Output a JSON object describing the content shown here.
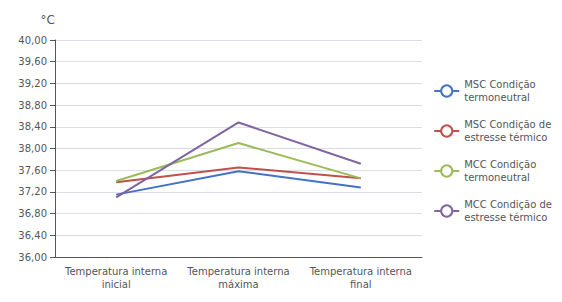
{
  "chart_data": {
    "type": "line",
    "ylabel": "°C",
    "categories": [
      "Temperatura interna\ninicial",
      "Temperatura interna\nmáxima",
      "Temperatura interna\nfinal"
    ],
    "series": [
      {
        "name": "MSC Condição\ntermoneutral",
        "color": "#4472C4",
        "values": [
          37.15,
          37.58,
          37.28
        ]
      },
      {
        "name": "MSC Condição de\nestresse térmico",
        "color": "#C0504D",
        "values": [
          37.38,
          37.65,
          37.45
        ]
      },
      {
        "name": "MCC Condição\ntermoneutral",
        "color": "#9BBB59",
        "values": [
          37.4,
          38.1,
          37.45
        ]
      },
      {
        "name": "MCC Condição de\nestresse térmico",
        "color": "#8064A2",
        "values": [
          37.1,
          38.48,
          37.72
        ]
      }
    ],
    "ylim": [
      36.0,
      40.0
    ],
    "yticks": [
      {
        "value": 36.0,
        "label": "36,00"
      },
      {
        "value": 36.4,
        "label": "36,40"
      },
      {
        "value": 36.8,
        "label": "36,80"
      },
      {
        "value": 37.2,
        "label": "37,20"
      },
      {
        "value": 37.6,
        "label": "37,60"
      },
      {
        "value": 38.0,
        "label": "38,00"
      },
      {
        "value": 38.4,
        "label": "38,40"
      },
      {
        "value": 38.8,
        "label": "38,80"
      },
      {
        "value": 39.2,
        "label": "39,20"
      },
      {
        "value": 39.6,
        "label": "39,60"
      },
      {
        "value": 40.0,
        "label": "40,00"
      }
    ],
    "grid": true,
    "legend": "right"
  }
}
